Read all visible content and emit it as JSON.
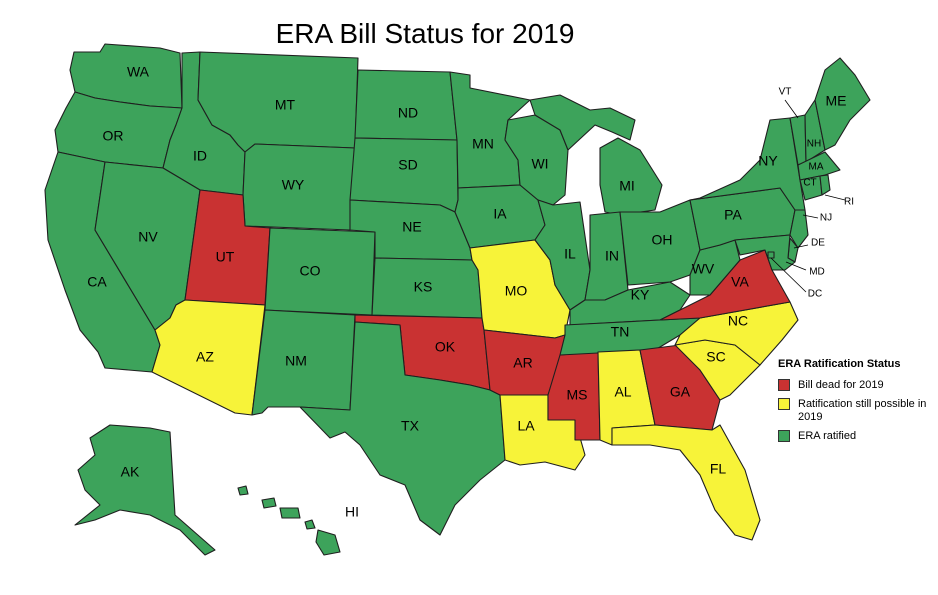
{
  "title": "ERA Bill Status for 2019",
  "colors": {
    "dead": "#c93232",
    "possible": "#f7f339",
    "ratified": "#3da35b"
  },
  "legend": {
    "title": "ERA Ratification Status",
    "items": [
      {
        "status": "dead",
        "label": "Bill dead for 2019"
      },
      {
        "status": "possible",
        "label": "Ratification still possible in 2019"
      },
      {
        "status": "ratified",
        "label": "ERA ratified"
      }
    ]
  },
  "states": {
    "WA": "ratified",
    "OR": "ratified",
    "CA": "ratified",
    "ID": "ratified",
    "NV": "ratified",
    "MT": "ratified",
    "WY": "ratified",
    "UT": "dead",
    "AZ": "possible",
    "CO": "ratified",
    "NM": "ratified",
    "ND": "ratified",
    "SD": "ratified",
    "NE": "ratified",
    "KS": "ratified",
    "OK": "dead",
    "TX": "ratified",
    "MN": "ratified",
    "IA": "ratified",
    "MO": "possible",
    "AR": "dead",
    "LA": "possible",
    "WI": "ratified",
    "IL": "ratified",
    "MS": "dead",
    "MI": "ratified",
    "IN": "ratified",
    "KY": "ratified",
    "TN": "ratified",
    "AL": "possible",
    "OH": "ratified",
    "WV": "ratified",
    "GA": "dead",
    "FL": "possible",
    "SC": "possible",
    "NC": "possible",
    "VA": "dead",
    "PA": "ratified",
    "NY": "ratified",
    "NJ": "ratified",
    "DE": "ratified",
    "MD": "ratified",
    "DC": "ratified",
    "VT": "ratified",
    "NH": "ratified",
    "ME": "ratified",
    "MA": "ratified",
    "CT": "ratified",
    "RI": "ratified",
    "AK": "ratified",
    "HI": "ratified"
  },
  "state_labels": [
    "WA",
    "OR",
    "CA",
    "ID",
    "NV",
    "MT",
    "WY",
    "UT",
    "AZ",
    "CO",
    "NM",
    "ND",
    "SD",
    "NE",
    "KS",
    "OK",
    "TX",
    "MN",
    "IA",
    "MO",
    "AR",
    "LA",
    "WI",
    "IL",
    "MS",
    "MI",
    "IN",
    "KY",
    "TN",
    "AL",
    "OH",
    "WV",
    "GA",
    "FL",
    "SC",
    "NC",
    "VA",
    "PA",
    "NY",
    "ME",
    "VT",
    "NH",
    "MA",
    "CT",
    "RI",
    "NJ",
    "DE",
    "MD",
    "DC",
    "AK",
    "HI"
  ]
}
